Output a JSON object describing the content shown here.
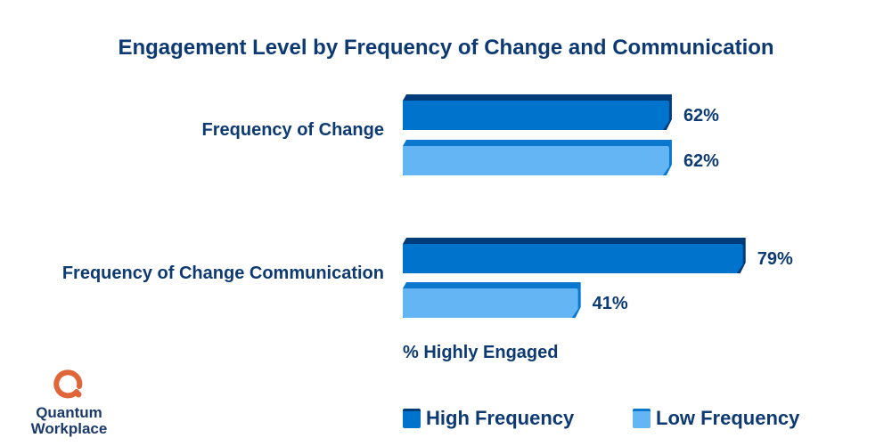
{
  "chart_data": {
    "type": "bar",
    "orientation": "horizontal",
    "title": "Engagement Level by Frequency of Change and Communication",
    "xlabel": "% Highly Engaged",
    "ylabel": "",
    "categories": [
      "Frequency of Change",
      "Frequency of Change Communication"
    ],
    "series": [
      {
        "name": "High Frequency",
        "values": [
          62,
          79
        ],
        "labels": [
          "62%",
          "79%"
        ],
        "color": "#0074cc",
        "top_color": "#003b7a"
      },
      {
        "name": "Low Frequency",
        "values": [
          62,
          41
        ],
        "labels": [
          "62%",
          "41%"
        ],
        "color": "#63b5f3",
        "top_color": "#0a78cf"
      }
    ],
    "xlim": [
      0,
      100
    ],
    "grid": false,
    "legend": "bottom"
  },
  "logo": {
    "line1": "Quantum",
    "line2": "Workplace",
    "color": "#e0663a"
  }
}
